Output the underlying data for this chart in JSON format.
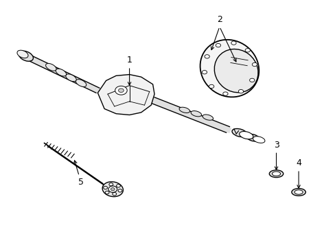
{
  "title": "",
  "background_color": "#ffffff",
  "line_color": "#000000",
  "line_width": 1.0,
  "fig_width": 4.89,
  "fig_height": 3.6,
  "dpi": 100
}
